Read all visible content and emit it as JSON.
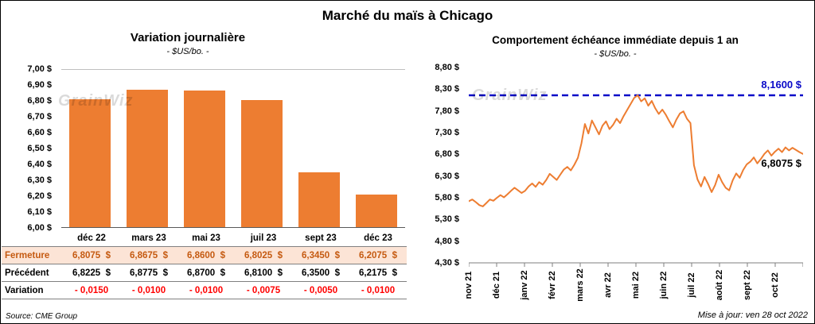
{
  "title": "Marché du maïs à Chicago",
  "watermark": "GrainWiz",
  "footer": {
    "source": "Source: CME Group",
    "updated": "Mise à jour: ven 28 oct 2022"
  },
  "table": {
    "rows": [
      {
        "style": "close",
        "label": "Fermeture",
        "cells": [
          "6,8075  $",
          "6,8675  $",
          "6,8600  $",
          "6,8025  $",
          "6,3450  $",
          "6,2075  $"
        ]
      },
      {
        "style": "prev",
        "label": "Précédent",
        "cells": [
          "6,8225  $",
          "6,8775  $",
          "6,8700  $",
          "6,8100  $",
          "6,3500  $",
          "6,2175  $"
        ]
      },
      {
        "style": "var",
        "label": "Variation",
        "cells": [
          "- 0,0150",
          "- 0,0100",
          "- 0,0100",
          "- 0,0075",
          "- 0,0050",
          "- 0,0100"
        ]
      }
    ]
  },
  "chart_data": [
    {
      "type": "bar",
      "title": "Variation  journalière",
      "subtitle": "- $US/bo. -",
      "categories": [
        "déc 22",
        "mars 23",
        "mai 23",
        "juil 23",
        "sept 23",
        "déc 23"
      ],
      "values": [
        6.8075,
        6.8675,
        6.86,
        6.8025,
        6.345,
        6.2075
      ],
      "ylim": [
        6.0,
        7.0
      ],
      "yticks": [
        "7,00 $",
        "6,90 $",
        "6,80 $",
        "6,70 $",
        "6,60 $",
        "6,50 $",
        "6,40 $",
        "6,30 $",
        "6,20 $",
        "6,10 $",
        "6,00 $"
      ],
      "bar_color": "#ED7D31",
      "grid": false
    },
    {
      "type": "line",
      "title": "Comportement  échéance  immédiate  depuis 1 an",
      "subtitle": "- $US/bo. -",
      "x_labels": [
        "nov 21",
        "déc 21",
        "janv 22",
        "févr 22",
        "mars 22",
        "avr 22",
        "mai 22",
        "juin 22",
        "juil 22",
        "août 22",
        "sept 22",
        "oct 22"
      ],
      "ylim": [
        4.3,
        8.8
      ],
      "yticks": [
        "8,80 $",
        "8,30 $",
        "7,80 $",
        "7,30 $",
        "6,80 $",
        "6,30 $",
        "5,80 $",
        "5,30 $",
        "4,80 $",
        "4,30 $"
      ],
      "line_color": "#ED7D31",
      "max_line": {
        "value": 8.16,
        "label": "8,1600 $",
        "color": "#0A0AC8"
      },
      "last_value": 6.8075,
      "last_label": "6,8075 $",
      "values": [
        5.72,
        5.76,
        5.7,
        5.63,
        5.6,
        5.68,
        5.76,
        5.73,
        5.8,
        5.86,
        5.81,
        5.88,
        5.96,
        6.03,
        5.97,
        5.91,
        5.96,
        6.06,
        6.13,
        6.05,
        6.16,
        6.1,
        6.21,
        6.35,
        6.28,
        6.21,
        6.33,
        6.45,
        6.51,
        6.43,
        6.56,
        6.72,
        7.05,
        7.5,
        7.28,
        7.58,
        7.42,
        7.26,
        7.46,
        7.56,
        7.38,
        7.48,
        7.62,
        7.52,
        7.68,
        7.82,
        7.96,
        8.1,
        8.16,
        8.02,
        8.09,
        7.92,
        8.03,
        7.86,
        7.73,
        7.83,
        7.71,
        7.56,
        7.42,
        7.6,
        7.74,
        7.79,
        7.62,
        7.52,
        6.55,
        6.22,
        6.06,
        6.28,
        6.12,
        5.93,
        6.09,
        6.33,
        6.16,
        6.03,
        5.97,
        6.2,
        6.36,
        6.26,
        6.44,
        6.57,
        6.63,
        6.73,
        6.59,
        6.69,
        6.81,
        6.89,
        6.77,
        6.86,
        6.93,
        6.85,
        6.96,
        6.89,
        6.95,
        6.9,
        6.85,
        6.8075
      ],
      "grid": false,
      "legend": "none"
    }
  ]
}
